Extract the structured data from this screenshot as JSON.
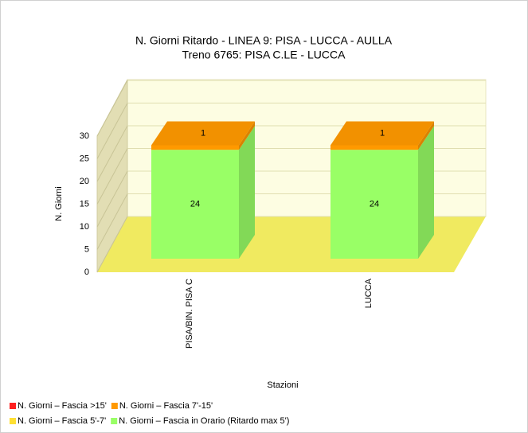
{
  "chart_data": {
    "type": "bar3d_stacked",
    "title": "N. Giorni Ritardo - LINEA 9: PISA - LUCCA - AULLA",
    "subtitle": "Treno 6765: PISA C.LE - LUCCA",
    "y_label": "N. Giorni",
    "x_label": "Stazioni",
    "categories": [
      "PISA/BIN. PISA C",
      "LUCCA"
    ],
    "series": [
      {
        "name": "N. Giorni – Fascia in Orario (Ritardo max 5')",
        "color": "#99ff66",
        "values": [
          24,
          24
        ]
      },
      {
        "name": "N. Giorni – Fascia 5'-7'",
        "color": "#ffe033",
        "values": [
          0,
          0
        ]
      },
      {
        "name": "N. Giorni – Fascia 7'-15'",
        "color": "#ff9900",
        "values": [
          1,
          1
        ]
      },
      {
        "name": "N. Giorni – Fascia >15'",
        "color": "#ff2020",
        "values": [
          0,
          0
        ]
      }
    ],
    "legend_order": [
      3,
      2,
      1,
      0
    ],
    "ylim": [
      0,
      30
    ],
    "yticks": [
      0,
      5,
      10,
      15,
      20,
      25,
      30
    ],
    "grid": true
  }
}
